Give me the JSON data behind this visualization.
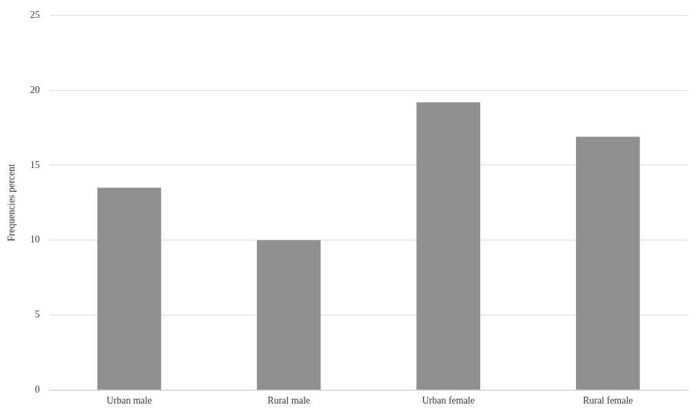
{
  "chart_data": {
    "type": "bar",
    "ylabel": "Frequencies percent",
    "categories": [
      "Urban male",
      "Rural male",
      "Urban female",
      "Rural female"
    ],
    "values": [
      13.5,
      10,
      19.2,
      16.9
    ],
    "color": "#909090",
    "ylim": [
      0,
      25
    ],
    "yticks": [
      0,
      5,
      10,
      15,
      20,
      25
    ],
    "grid": "y",
    "legend": false
  }
}
